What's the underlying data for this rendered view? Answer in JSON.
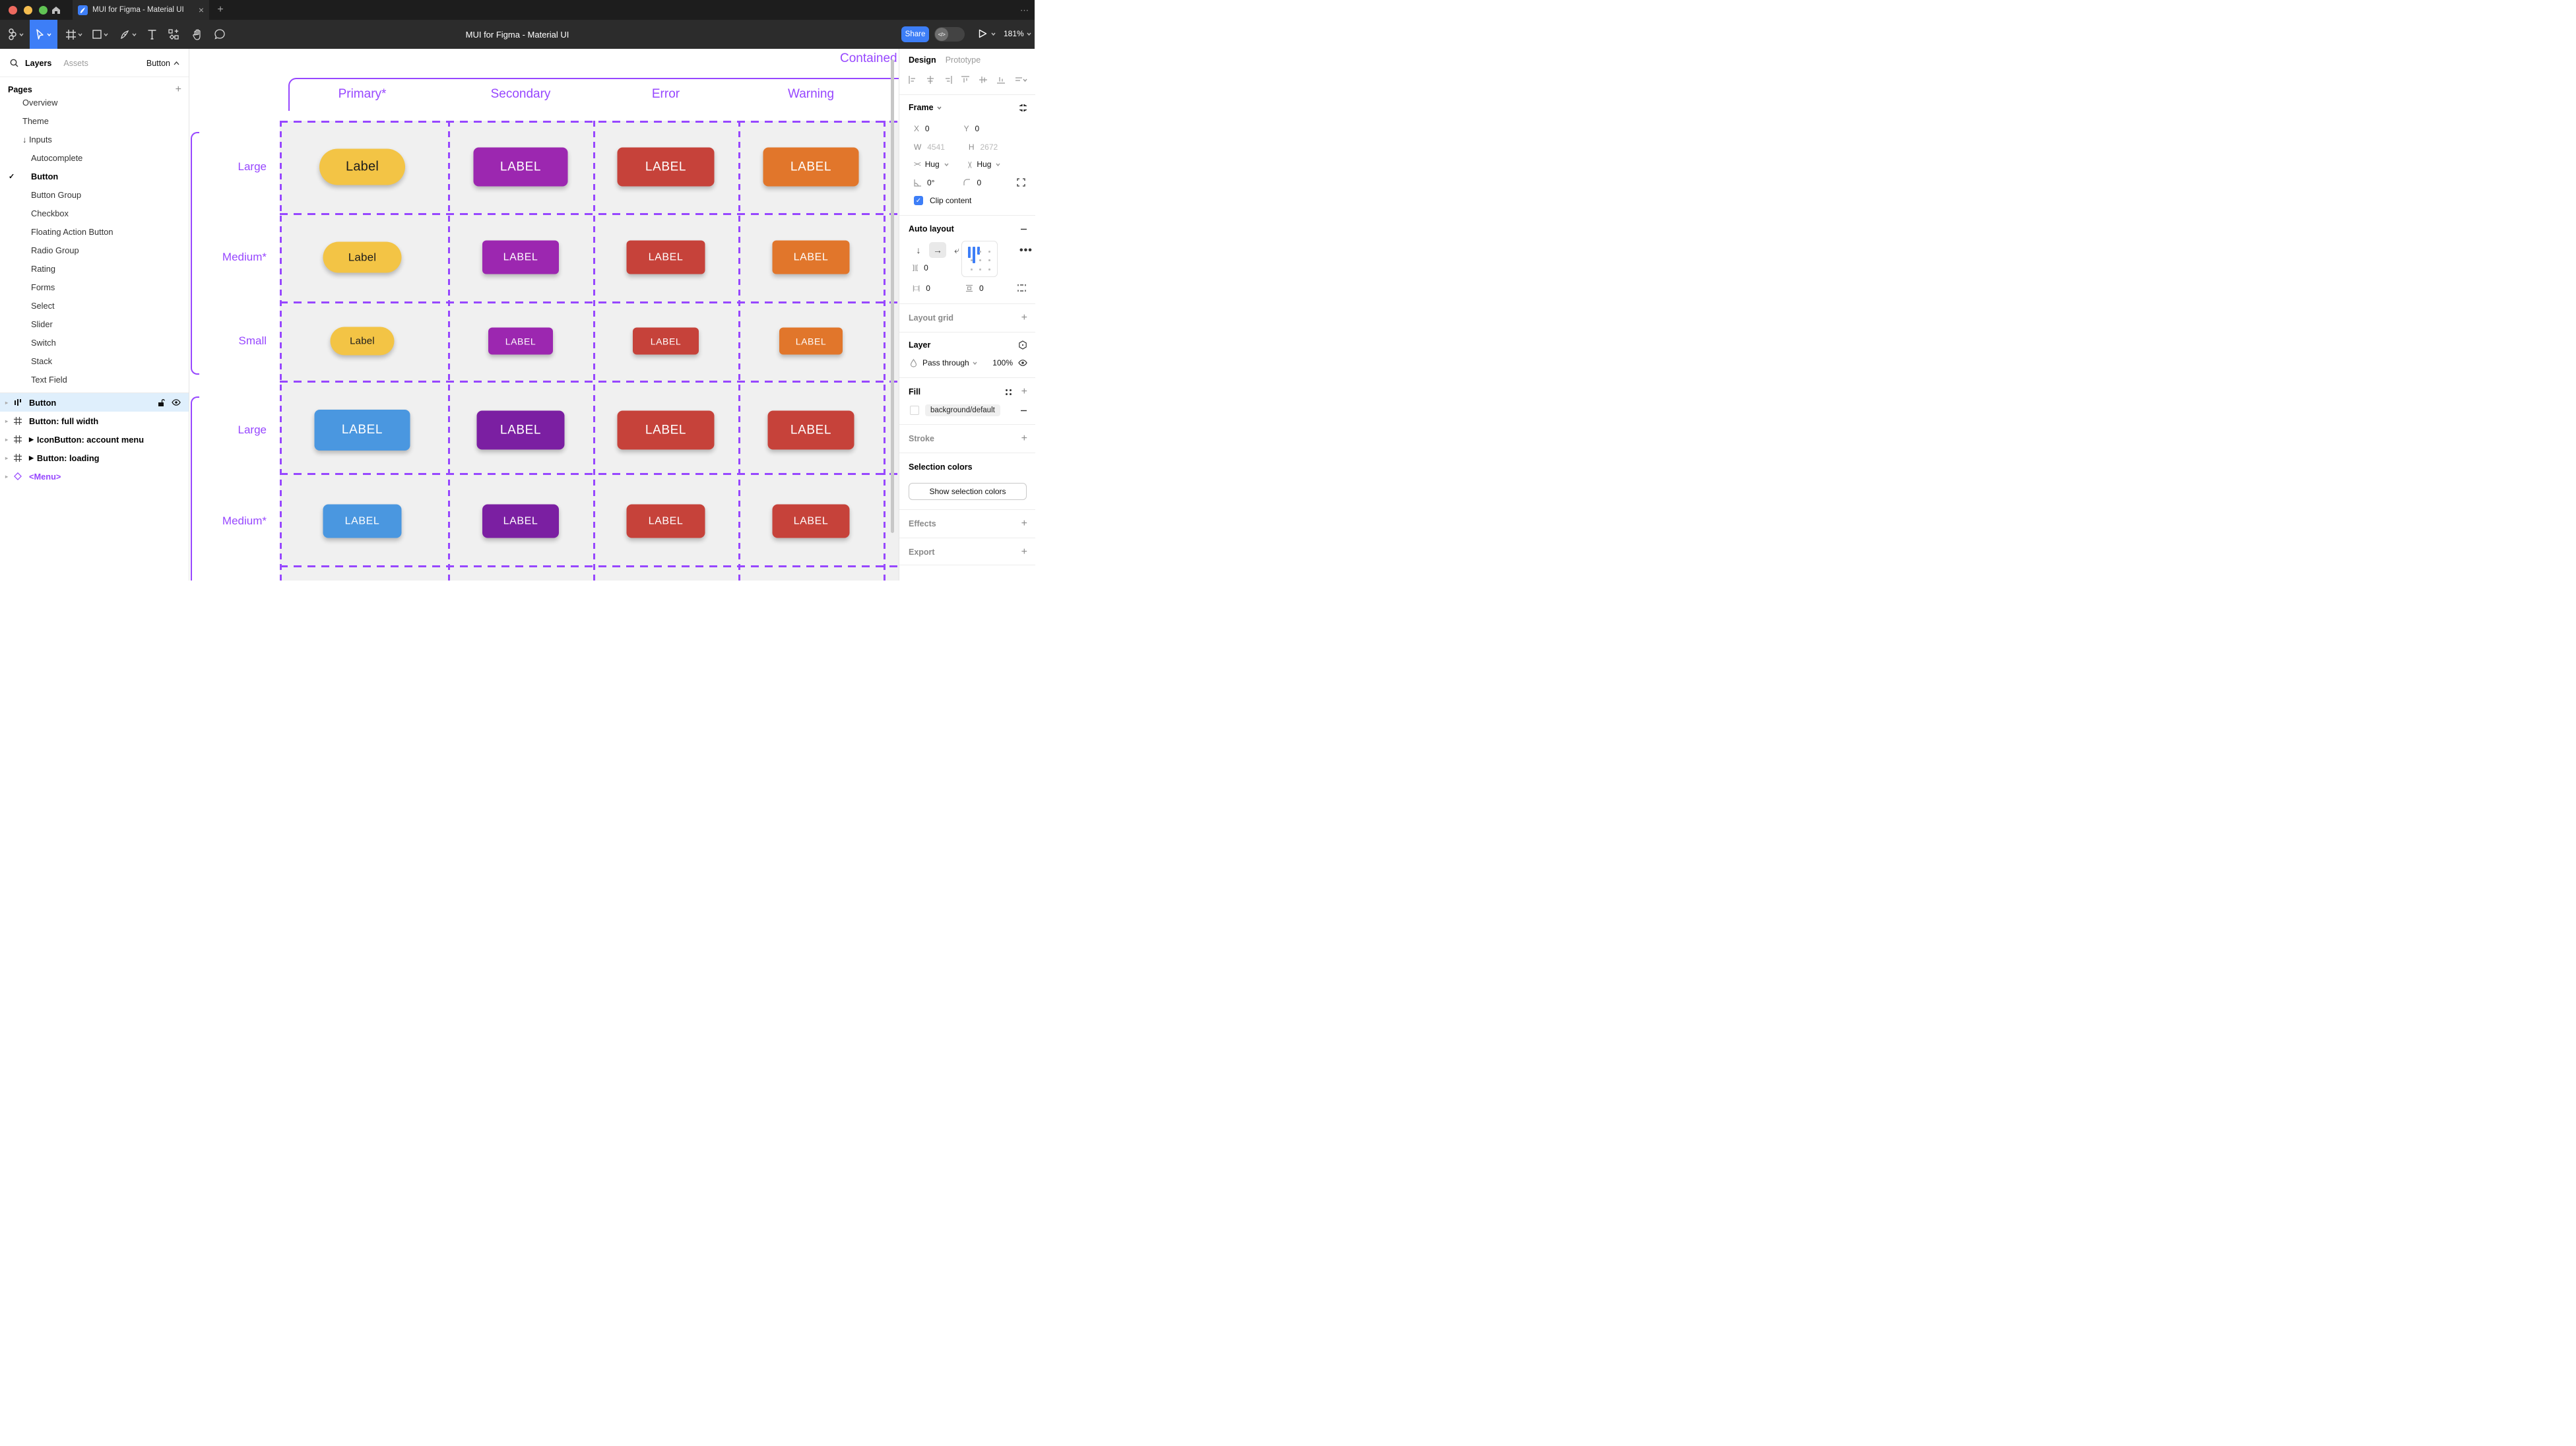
{
  "browser": {
    "tab_title": "MUI for Figma - Material UI"
  },
  "toolbar": {
    "doc_title": "MUI for Figma - Material UI",
    "share_label": "Share",
    "zoom_label": "181%"
  },
  "sidebar": {
    "tab_layers": "Layers",
    "tab_assets": "Assets",
    "breadcrumb": "Button",
    "pages_header": "Pages",
    "pages": [
      {
        "label": "Overview",
        "indent": 1
      },
      {
        "label": "Theme",
        "indent": 1
      },
      {
        "label": "Inputs",
        "indent": 1,
        "prefix": "↓ "
      },
      {
        "label": "Autocomplete",
        "indent": 2
      },
      {
        "label": "Button",
        "indent": 2,
        "active": true
      },
      {
        "label": "Button Group",
        "indent": 2
      },
      {
        "label": "Checkbox",
        "indent": 2
      },
      {
        "label": "Floating Action Button",
        "indent": 2
      },
      {
        "label": "Radio Group",
        "indent": 2
      },
      {
        "label": "Rating",
        "indent": 2
      },
      {
        "label": "Forms",
        "indent": 2
      },
      {
        "label": "Select",
        "indent": 2
      },
      {
        "label": "Slider",
        "indent": 2
      },
      {
        "label": "Switch",
        "indent": 2
      },
      {
        "label": "Stack",
        "indent": 2
      },
      {
        "label": "Text Field",
        "indent": 2
      }
    ],
    "layers": [
      {
        "label": "Button",
        "icon": "autolayout",
        "selected": true
      },
      {
        "label": "Button: full width",
        "icon": "frame"
      },
      {
        "label": "IconButton: account menu",
        "icon": "frame",
        "play": true
      },
      {
        "label": "Button: loading",
        "icon": "frame",
        "play": true
      },
      {
        "label": "<Menu>",
        "icon": "component",
        "purple": true
      }
    ]
  },
  "canvas": {
    "frame_title": "Contained",
    "columns": [
      "Primary*",
      "Secondary",
      "Error",
      "Warning"
    ],
    "row_labels": [
      "Large",
      "Medium*",
      "Small",
      "Large",
      "Medium*"
    ],
    "colors": {
      "accent": "#9747FF",
      "yellow": "#F3C445",
      "purple": "#9C27B0",
      "purple_dark": "#7B1FA2",
      "red": "#C6423A",
      "orange": "#E1762B",
      "blue": "#4A97E0",
      "dark_text": "#1C1C1C"
    },
    "buttons": [
      [
        {
          "t": "Label",
          "c": "yellow"
        },
        {
          "t": "LABEL",
          "c": "purple"
        },
        {
          "t": "LABEL",
          "c": "red"
        },
        {
          "t": "LABEL",
          "c": "orange"
        }
      ],
      [
        {
          "t": "Label",
          "c": "yellow"
        },
        {
          "t": "LABEL",
          "c": "purple"
        },
        {
          "t": "LABEL",
          "c": "red"
        },
        {
          "t": "LABEL",
          "c": "orange"
        }
      ],
      [
        {
          "t": "Label",
          "c": "yellow"
        },
        {
          "t": "LABEL",
          "c": "purple"
        },
        {
          "t": "LABEL",
          "c": "red"
        },
        {
          "t": "LABEL",
          "c": "orange"
        }
      ],
      [
        {
          "t": "LABEL",
          "c": "blue"
        },
        {
          "t": "LABEL",
          "c": "purple_dark"
        },
        {
          "t": "LABEL",
          "c": "red"
        },
        {
          "t": "LABEL",
          "c": "red"
        }
      ],
      [
        {
          "t": "LABEL",
          "c": "blue"
        },
        {
          "t": "LABEL",
          "c": "purple_dark"
        },
        {
          "t": "LABEL",
          "c": "red"
        },
        {
          "t": "LABEL",
          "c": "red"
        }
      ]
    ]
  },
  "panel": {
    "tab_design": "Design",
    "tab_prototype": "Prototype",
    "frame": {
      "title": "Frame",
      "x_label": "X",
      "x": "0",
      "y_label": "Y",
      "y": "0",
      "w_label": "W",
      "w": "4541",
      "h_label": "H",
      "h": "2672",
      "hug_h": "Hug",
      "hug_v": "Hug",
      "rotation": "0°",
      "radius": "0",
      "clip_label": "Clip content"
    },
    "auto_layout": {
      "title": "Auto layout",
      "gap": "0",
      "pad_h": "0",
      "pad_v": "0"
    },
    "layout_grid_label": "Layout grid",
    "layer": {
      "title": "Layer",
      "blend": "Pass through",
      "opacity": "100%"
    },
    "fill": {
      "title": "Fill",
      "value": "background/default"
    },
    "stroke_label": "Stroke",
    "selection": {
      "title": "Selection colors",
      "button_label": "Show selection colors"
    },
    "effects_label": "Effects",
    "export_label": "Export"
  }
}
